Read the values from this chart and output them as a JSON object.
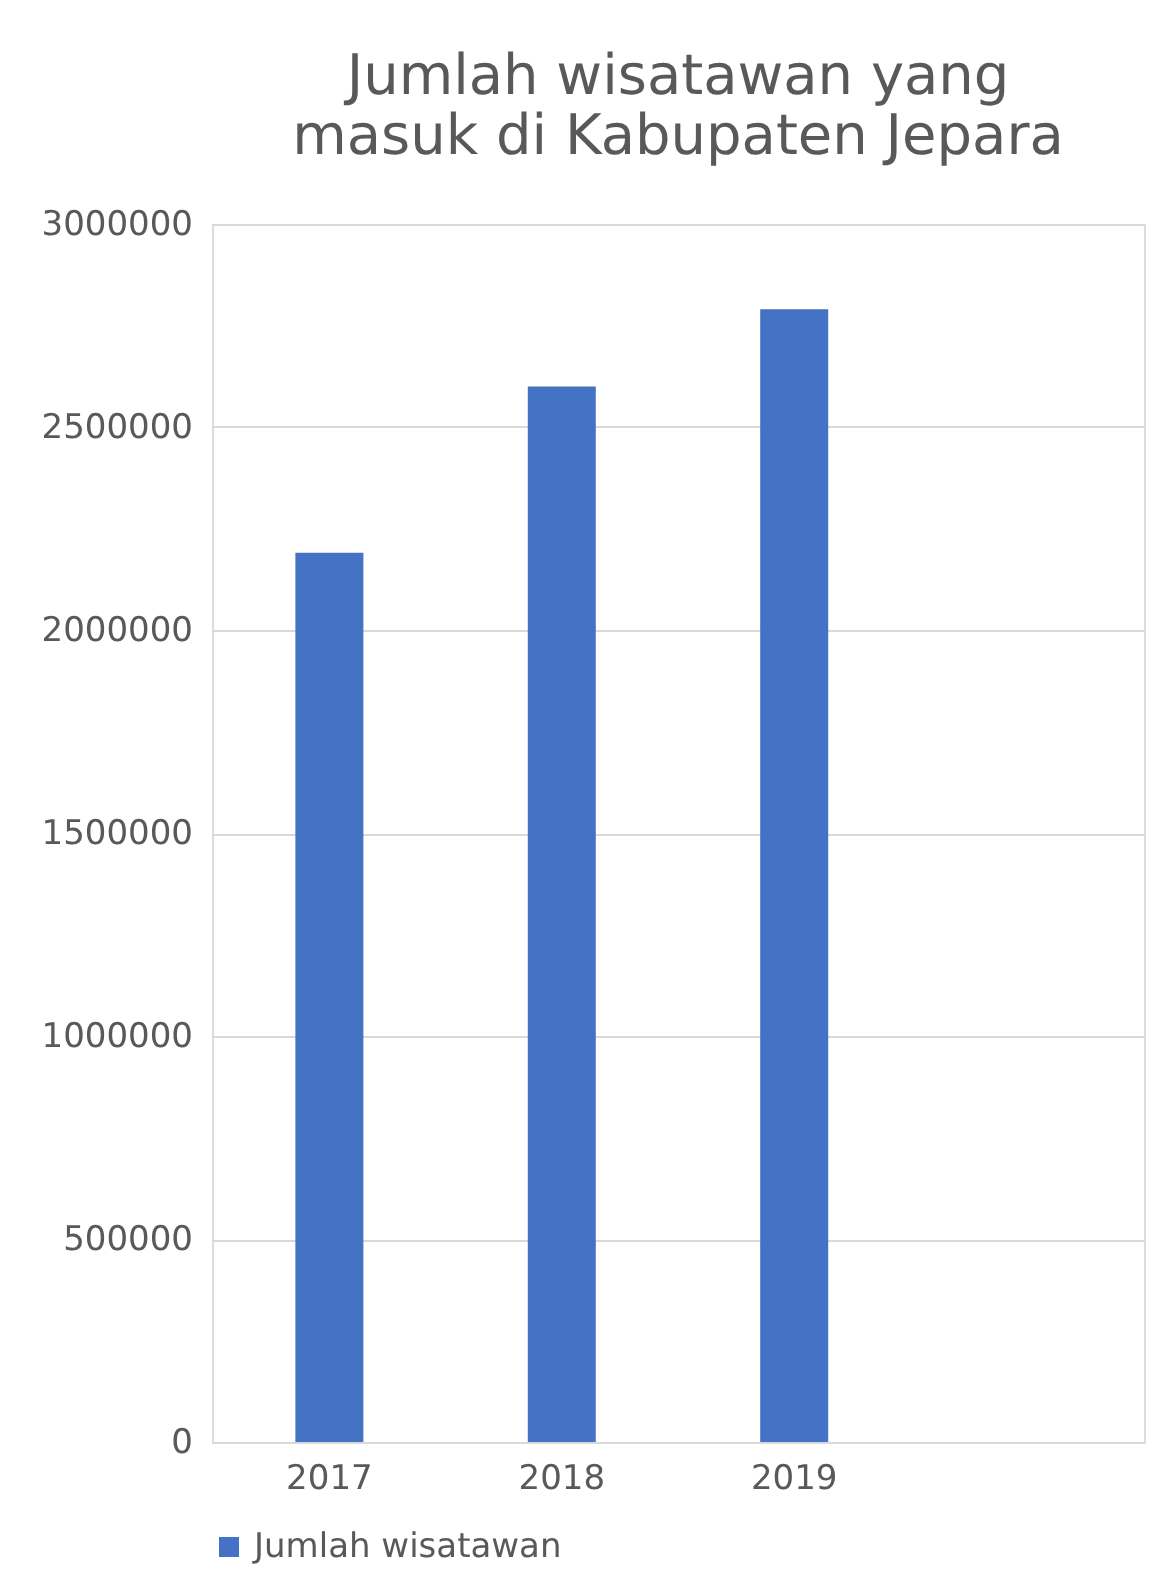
{
  "chart_data": {
    "type": "bar",
    "title": "Jumlah wisatawan yang masuk di Kabupaten Jepara",
    "categories": [
      "2017",
      "2018",
      "2019",
      null
    ],
    "series": [
      {
        "name": "Jumlah wisatawan",
        "color": "#4472c4",
        "values": [
          2190000,
          2600000,
          2790000,
          null
        ]
      }
    ],
    "ylim": [
      0,
      3000000
    ],
    "yticks": [
      0,
      500000,
      1000000,
      1500000,
      2000000,
      2500000,
      3000000
    ],
    "grid": "y",
    "legend": "bottom"
  }
}
